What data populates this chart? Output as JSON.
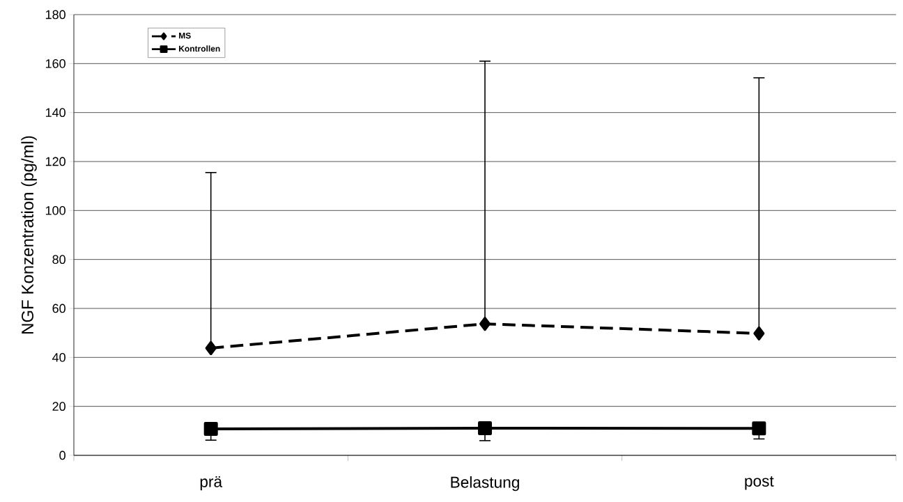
{
  "chart_data": {
    "type": "line",
    "ylabel": "NGF Konzentration (pg/ml)",
    "categories": [
      "prä",
      "Belastung",
      "post"
    ],
    "series": [
      {
        "name": "MS",
        "color": "#000000",
        "values": [
          43.8,
          53.7,
          49.8
        ],
        "errors": [
          [
            43.8,
            115.5
          ],
          [
            53.7,
            161
          ],
          [
            49.8,
            154.2
          ]
        ],
        "marker": "diamond",
        "line_style": "dashed"
      },
      {
        "name": "Kontrollen",
        "color": "#000000",
        "values": [
          10.8,
          11.1,
          11.0
        ],
        "errors": [
          [
            6.2,
            10.8
          ],
          [
            6.0,
            11.1
          ],
          [
            6.7,
            11.0
          ]
        ],
        "marker": "square",
        "line_style": "solid"
      }
    ],
    "ylim": [
      0,
      180
    ],
    "yticks": [
      0,
      20,
      40,
      60,
      80,
      100,
      120,
      140,
      160,
      180
    ],
    "grid": "y",
    "legend": "top left"
  }
}
